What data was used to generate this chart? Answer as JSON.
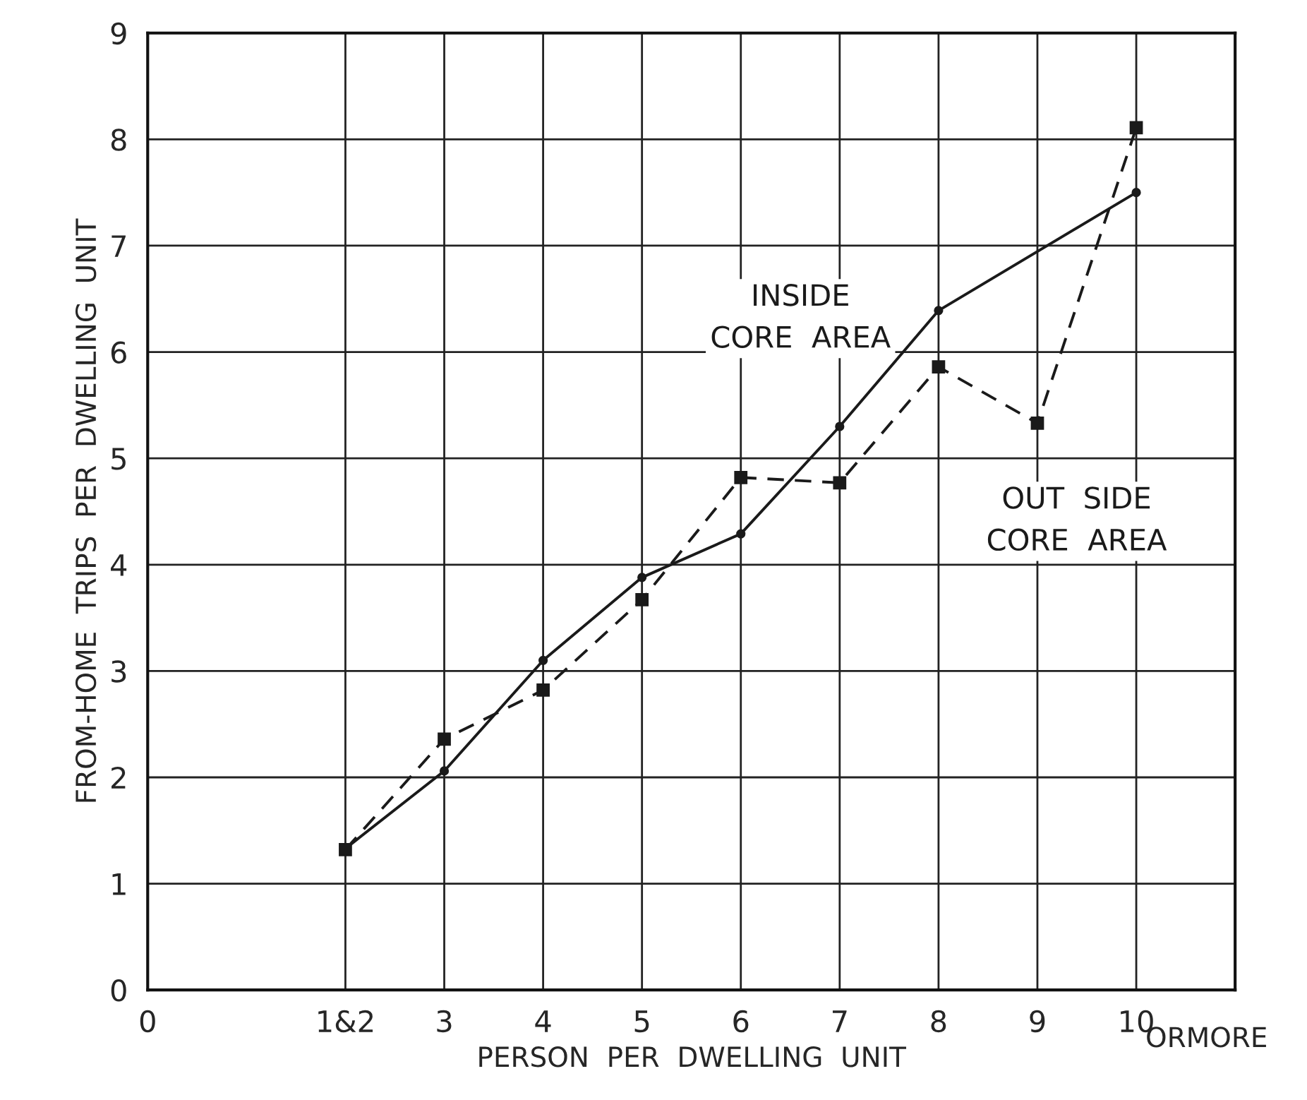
{
  "chart_data": {
    "type": "line",
    "xlabel": "PERSON  PER  DWELLING  UNIT",
    "ylabel": "FROM-HOME  TRIPS  PER  DWELLING  UNIT",
    "series": [
      {
        "name": "INSIDE\nCORE  AREA",
        "color": "#1a1a1a",
        "line_style": "solid",
        "marker": "circle",
        "x": [
          2,
          3,
          4,
          5,
          6,
          7,
          8,
          10
        ],
        "values": [
          1.33,
          2.06,
          3.1,
          3.88,
          4.29,
          5.3,
          6.39,
          7.5
        ]
      },
      {
        "name": "OUT  SIDE\nCORE  AREA",
        "color": "#1a1a1a",
        "line_style": "dashed",
        "marker": "square",
        "x": [
          2,
          3,
          4,
          5,
          6,
          7,
          8,
          9,
          10
        ],
        "values": [
          1.32,
          2.36,
          2.82,
          3.67,
          4.82,
          4.77,
          5.86,
          5.33,
          8.11
        ]
      }
    ],
    "xlim": [
      0,
      11
    ],
    "xticks": [
      0,
      {
        "value": 2,
        "label": "1&2"
      },
      3,
      4,
      5,
      6,
      7,
      8,
      9,
      10
    ],
    "ylim": [
      0,
      9
    ],
    "yticks": [
      0,
      1,
      2,
      3,
      4,
      5,
      6,
      7,
      8,
      9
    ],
    "annotations": [
      "ORMORE"
    ],
    "grid": true,
    "legend": false
  }
}
